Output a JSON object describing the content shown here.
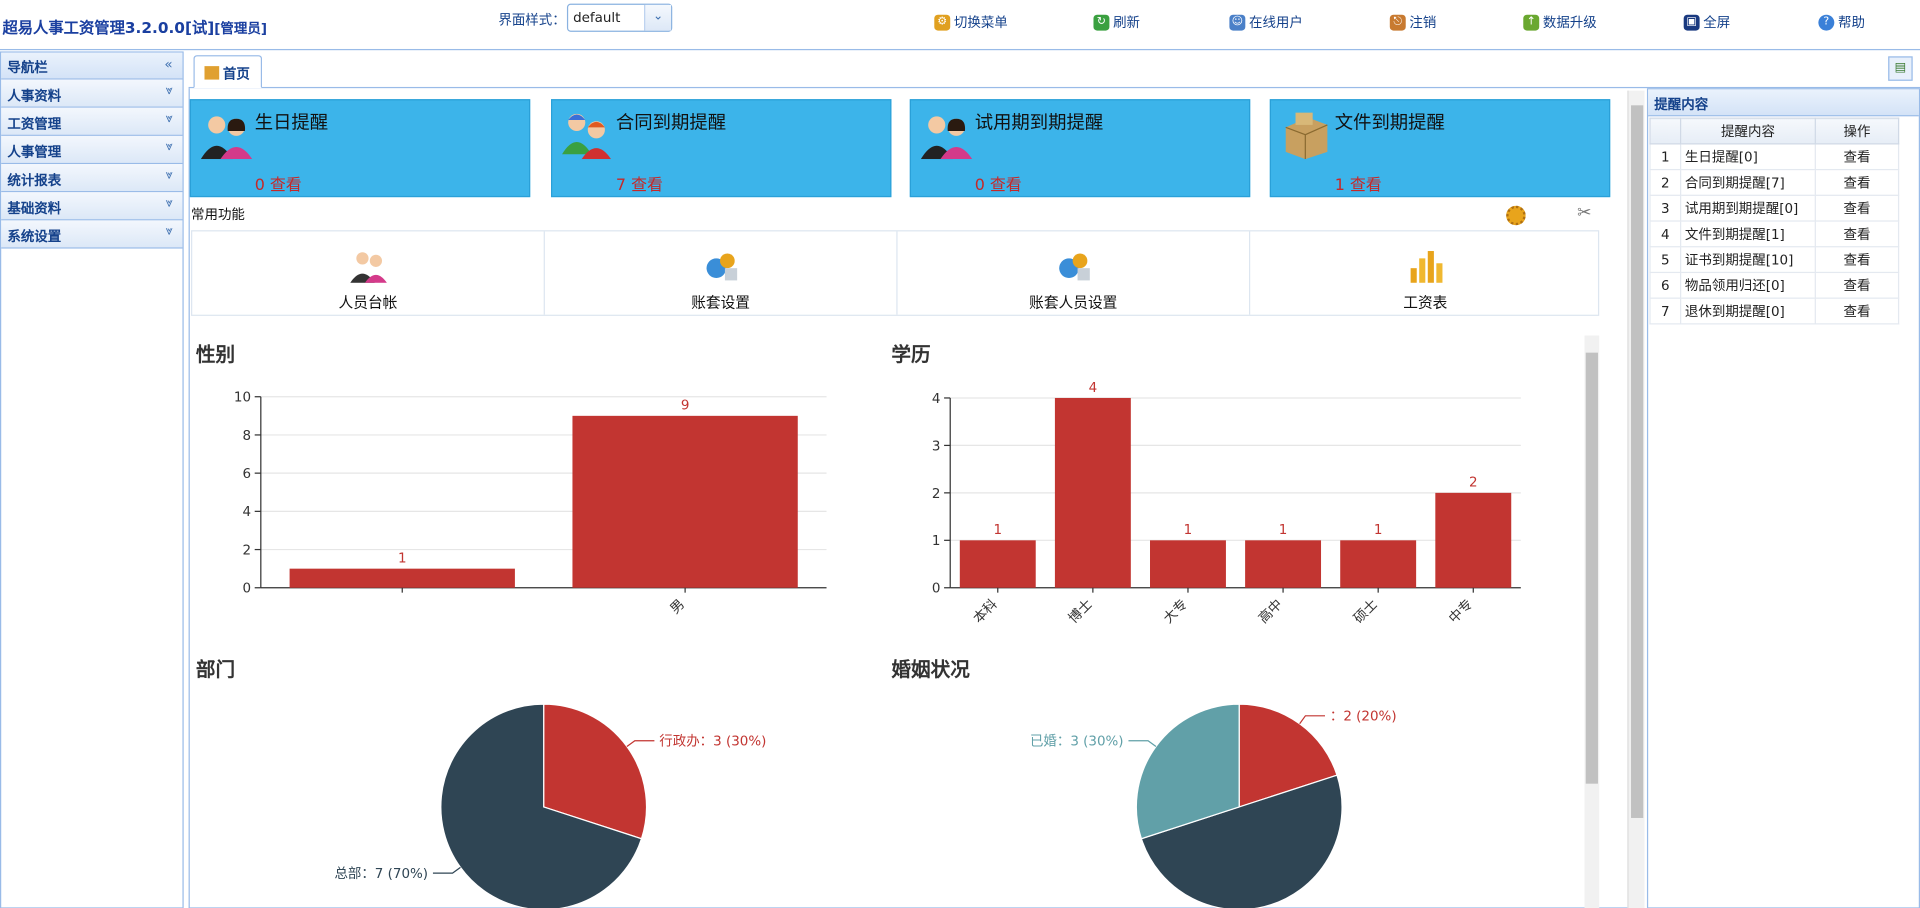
{
  "app": {
    "title": "超易人事工资管理3.2.0.0[试]",
    "role": "[管理员]"
  },
  "style_selector": {
    "label": "界面样式：",
    "value": "default"
  },
  "toolbar": [
    {
      "label": "切换菜单",
      "icon": "switch-menu-icon",
      "color": "#e0a020"
    },
    {
      "label": "刷新",
      "icon": "refresh-icon",
      "color": "#3aa040"
    },
    {
      "label": "在线用户",
      "icon": "online-users-icon",
      "color": "#4a80c8"
    },
    {
      "label": "注销",
      "icon": "logout-icon",
      "color": "#c87a30"
    },
    {
      "label": "数据升级",
      "icon": "data-upgrade-icon",
      "color": "#6aa830"
    },
    {
      "label": "全屏",
      "icon": "fullscreen-icon",
      "color": "#1a3a80"
    },
    {
      "label": "帮助",
      "icon": "help-icon",
      "color": "#3a80d8"
    }
  ],
  "nav": {
    "header": "导航栏",
    "items": [
      "人事资料",
      "工资管理",
      "人事管理",
      "统计报表",
      "基础资料",
      "系统设置"
    ]
  },
  "tabs": {
    "home": "首页"
  },
  "reminders": [
    {
      "title": "生日提醒",
      "value": "0 查看"
    },
    {
      "title": "合同到期提醒",
      "value": "7 查看"
    },
    {
      "title": "试用期到期提醒",
      "value": "0 查看"
    },
    {
      "title": "文件到期提醒",
      "value": "1 查看"
    }
  ],
  "common": {
    "label": "常用功能",
    "items": [
      "人员台帐",
      "账套设置",
      "账套人员设置",
      "工资表"
    ]
  },
  "chart_titles": {
    "gender": "性别",
    "education": "学历",
    "department": "部门",
    "marital": "婚姻状况"
  },
  "chart_data": [
    {
      "type": "bar",
      "title": "性别",
      "categories": [
        "",
        "男"
      ],
      "values": [
        1,
        9
      ],
      "ylim": [
        0,
        10
      ],
      "yticks": [
        0,
        2,
        4,
        6,
        8,
        10
      ]
    },
    {
      "type": "bar",
      "title": "学历",
      "categories": [
        "本科",
        "博士",
        "大专",
        "高中",
        "硕士",
        "中专"
      ],
      "values": [
        1,
        4,
        1,
        1,
        1,
        2
      ],
      "ylim": [
        0,
        4
      ],
      "yticks": [
        0,
        1,
        2,
        3,
        4
      ]
    },
    {
      "type": "pie",
      "title": "部门",
      "slices": [
        {
          "label": "行政办：3 (30%)",
          "value": 3,
          "color": "#c23531"
        },
        {
          "label": "总部：7 (70%)",
          "value": 7,
          "color": "#2f4554"
        }
      ]
    },
    {
      "type": "pie",
      "title": "婚姻状况",
      "slices": [
        {
          "label": "：2 (20%)",
          "value": 2,
          "color": "#c23531"
        },
        {
          "label": "",
          "value": 5,
          "color": "#2f4554"
        },
        {
          "label": "已婚：3 (30%)",
          "value": 3,
          "color": "#61a0a8"
        }
      ]
    }
  ],
  "right_panel": {
    "title": "提醒内容",
    "columns": [
      "提醒内容",
      "操作"
    ],
    "rows": [
      {
        "no": "1",
        "content": "生日提醒[0]",
        "op": "查看"
      },
      {
        "no": "2",
        "content": "合同到期提醒[7]",
        "op": "查看"
      },
      {
        "no": "3",
        "content": "试用期到期提醒[0]",
        "op": "查看"
      },
      {
        "no": "4",
        "content": "文件到期提醒[1]",
        "op": "查看"
      },
      {
        "no": "5",
        "content": "证书到期提醒[10]",
        "op": "查看"
      },
      {
        "no": "6",
        "content": "物品领用归还[0]",
        "op": "查看"
      },
      {
        "no": "7",
        "content": "退休到期提醒[0]",
        "op": "查看"
      }
    ]
  },
  "colors": {
    "accent": "#15428b",
    "card": "#3cb4ea",
    "bar": "#c23531"
  }
}
